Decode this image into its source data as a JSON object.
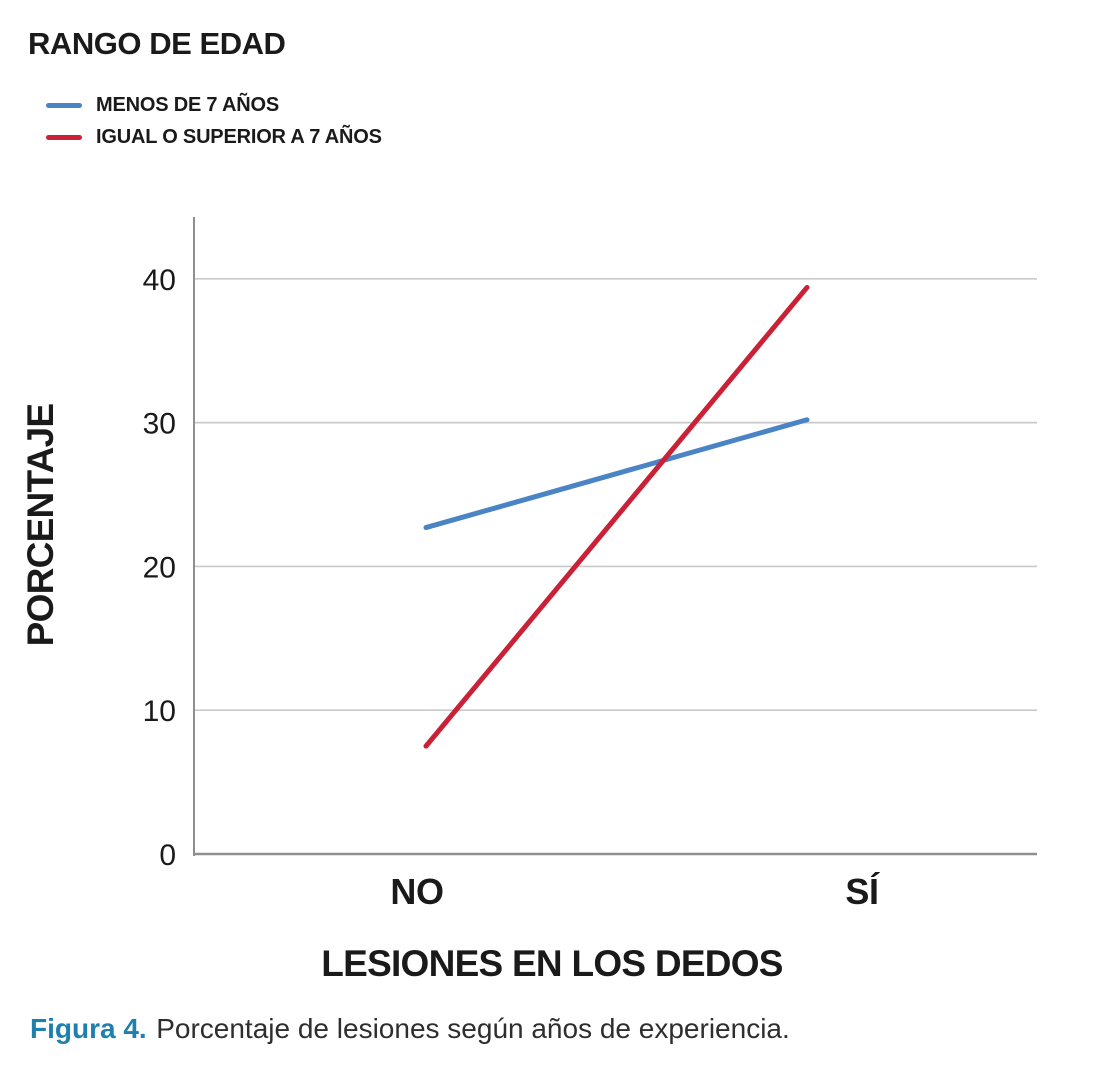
{
  "caption": {
    "label": "Figura 4.",
    "text": "Porcentaje de lesiones según años de experiencia.",
    "label_color": "#1f7fae",
    "text_color": "#2e2e2e"
  },
  "chart_data": {
    "type": "line",
    "title": "RANGO DE EDAD",
    "categories": [
      "NO",
      "SÍ"
    ],
    "series": [
      {
        "name": "MENOS DE 7 AÑOS",
        "values": [
          22.7,
          30.2
        ],
        "color": "#4a84c4"
      },
      {
        "name": "IGUAL O SUPERIOR A 7 AÑOS",
        "values": [
          7.5,
          39.4
        ],
        "color": "#cb2137"
      }
    ],
    "xlabel": "LESIONES EN LOS DEDOS",
    "ylabel": "PORCENTAJE",
    "yticks": [
      0,
      10,
      20,
      30,
      40
    ],
    "ylim": [
      0,
      44.3
    ],
    "grid": true,
    "grid_color": "#c9c9c9",
    "axis_color": "#8f8f8f",
    "legend_position": "top-left"
  }
}
